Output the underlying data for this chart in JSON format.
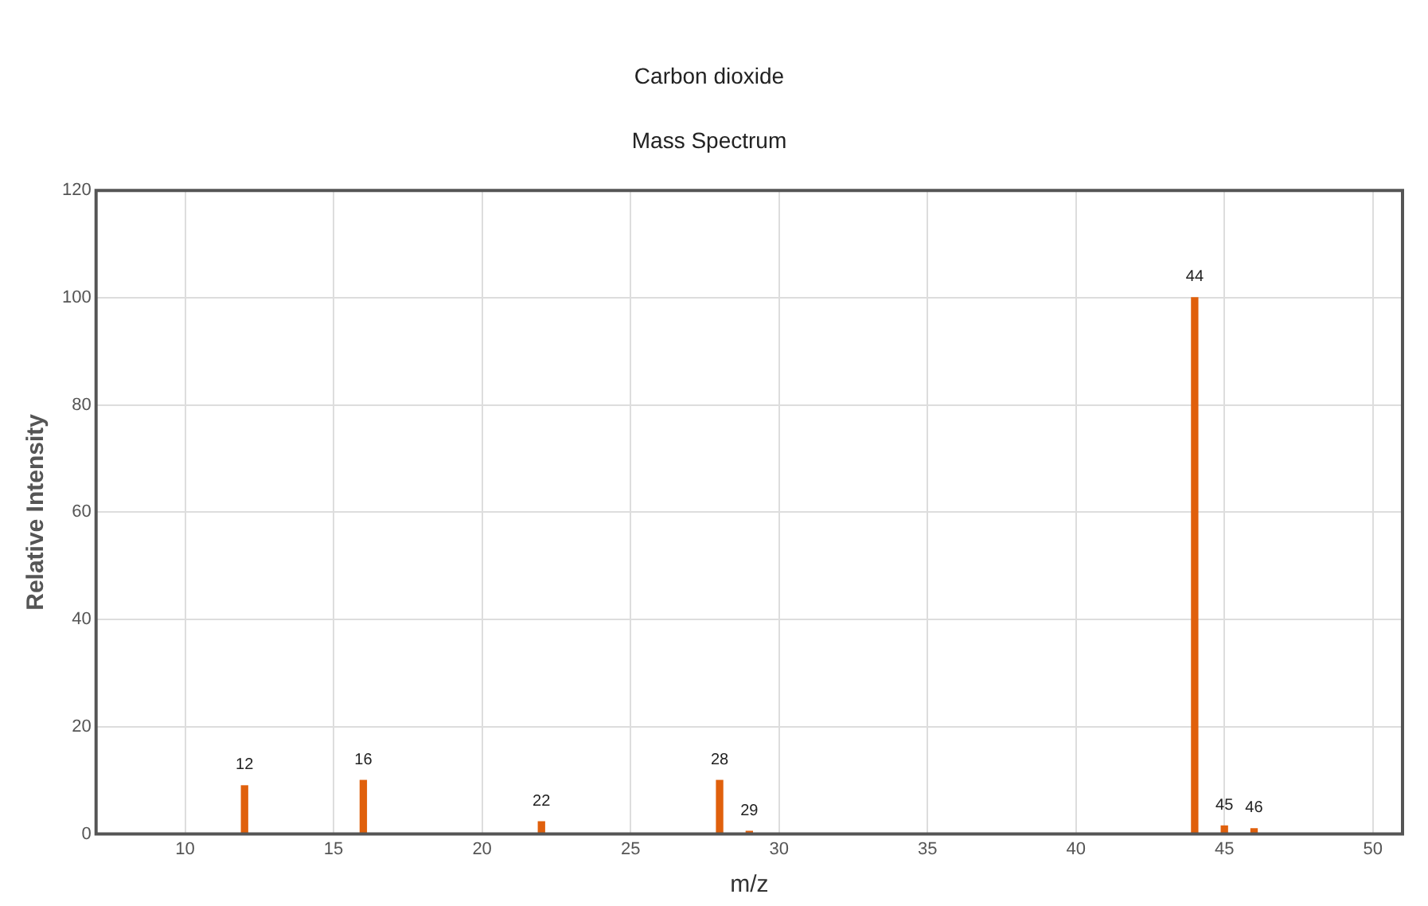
{
  "chart_data": {
    "type": "bar",
    "title": "Carbon dioxide",
    "subtitle": "Mass Spectrum",
    "xlabel": "m/z",
    "ylabel": "Relative Intensity",
    "x": [
      12,
      16,
      22,
      28,
      29,
      44,
      45,
      46
    ],
    "values": [
      9,
      10,
      2.3,
      10,
      0.5,
      100,
      1.5,
      1
    ],
    "color": "#e0600c",
    "xlim": [
      7,
      51
    ],
    "xticks": [
      10,
      15,
      20,
      25,
      30,
      35,
      40,
      45,
      50
    ],
    "ylim": [
      0,
      120
    ],
    "yticks": [
      0,
      20,
      40,
      60,
      80,
      100,
      120
    ],
    "grid": true,
    "legend": false,
    "annotations": [
      {
        "text": "12",
        "x": 12,
        "y": 9
      },
      {
        "text": "16",
        "x": 16,
        "y": 10
      },
      {
        "text": "22",
        "x": 22,
        "y": 2.3
      },
      {
        "text": "28",
        "x": 28,
        "y": 10
      },
      {
        "text": "29",
        "x": 29,
        "y": 0.5
      },
      {
        "text": "44",
        "x": 44,
        "y": 100
      },
      {
        "text": "45",
        "x": 45,
        "y": 1.5
      },
      {
        "text": "46",
        "x": 46,
        "y": 1
      }
    ]
  }
}
